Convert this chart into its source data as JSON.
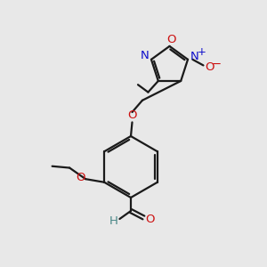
{
  "bg_color": "#e8e8e8",
  "bond_color": "#1a1a1a",
  "N_color": "#1010cc",
  "O_color": "#cc1010",
  "H_color": "#4a8888",
  "lw": 1.6,
  "fs": 9.5,
  "figsize": [
    3.0,
    3.0
  ],
  "dpi": 100,
  "xlim": [
    0,
    10
  ],
  "ylim": [
    0,
    10
  ]
}
